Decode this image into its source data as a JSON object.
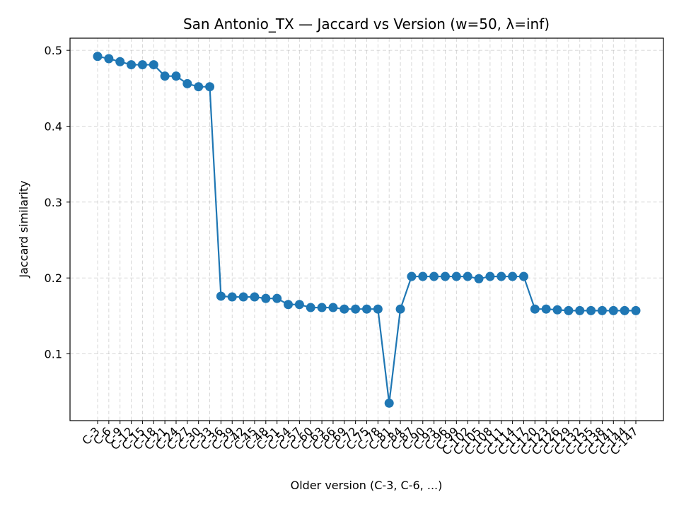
{
  "chart_data": {
    "type": "line",
    "title": "San Antonio_TX — Jaccard vs Version (w=50, λ=inf)",
    "xlabel": "Older version (C-3, C-6, ...)",
    "ylabel": "Jaccard similarity",
    "ylim": [
      0.012,
      0.516
    ],
    "yticks": [
      "0.1",
      "0.2",
      "0.3",
      "0.4",
      "0.5"
    ],
    "grid": true,
    "x": [
      "C-3",
      "C-6",
      "C-9",
      "C-12",
      "C-15",
      "C-18",
      "C-21",
      "C-24",
      "C-27",
      "C-30",
      "C-33",
      "C-36",
      "C-39",
      "C-42",
      "C-45",
      "C-48",
      "C-51",
      "C-54",
      "C-57",
      "C-60",
      "C-63",
      "C-66",
      "C-69",
      "C-72",
      "C-75",
      "C-78",
      "C-81",
      "C-84",
      "C-87",
      "C-90",
      "C-93",
      "C-96",
      "C-99",
      "C-102",
      "C-105",
      "C-108",
      "C-111",
      "C-114",
      "C-117",
      "C-120",
      "C-123",
      "C-126",
      "C-129",
      "C-132",
      "C-135",
      "C-138",
      "C-141",
      "C-144",
      "C-147"
    ],
    "series": [
      {
        "values": [
          0.492,
          0.489,
          0.485,
          0.481,
          0.481,
          0.481,
          0.466,
          0.466,
          0.456,
          0.452,
          0.452,
          0.176,
          0.175,
          0.175,
          0.175,
          0.173,
          0.173,
          0.165,
          0.165,
          0.161,
          0.161,
          0.161,
          0.159,
          0.159,
          0.159,
          0.159,
          0.035,
          0.159,
          0.202,
          0.202,
          0.202,
          0.202,
          0.202,
          0.202,
          0.199,
          0.202,
          0.202,
          0.202,
          0.202,
          0.159,
          0.159,
          0.158,
          0.157,
          0.157,
          0.157,
          0.157,
          0.157,
          0.157,
          0.157
        ],
        "color": "#1f77b4"
      }
    ]
  }
}
